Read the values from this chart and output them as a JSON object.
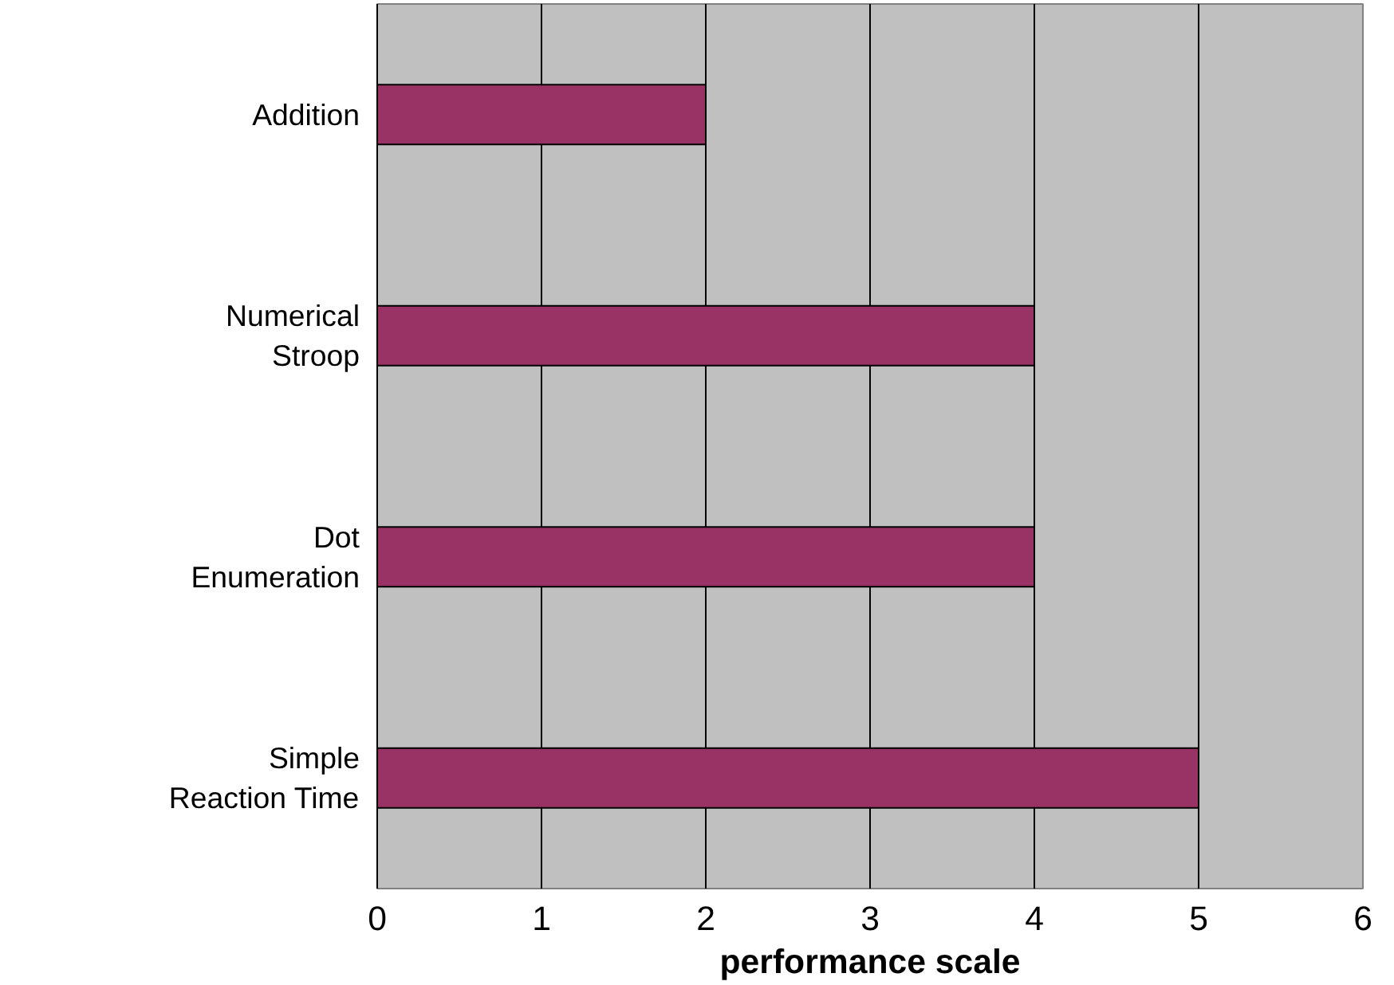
{
  "chart_data": {
    "type": "bar",
    "orientation": "horizontal",
    "categories": [
      "Addition",
      "Numerical Stroop",
      "Dot Enumeration",
      "Simple Reaction Time"
    ],
    "values": [
      2,
      4,
      4,
      5
    ],
    "color": "#993366",
    "xlabel": "performance scale",
    "xlim": [
      0,
      6
    ],
    "xticks": [
      0,
      1,
      2,
      3,
      4,
      5,
      6
    ],
    "grid": "x"
  }
}
